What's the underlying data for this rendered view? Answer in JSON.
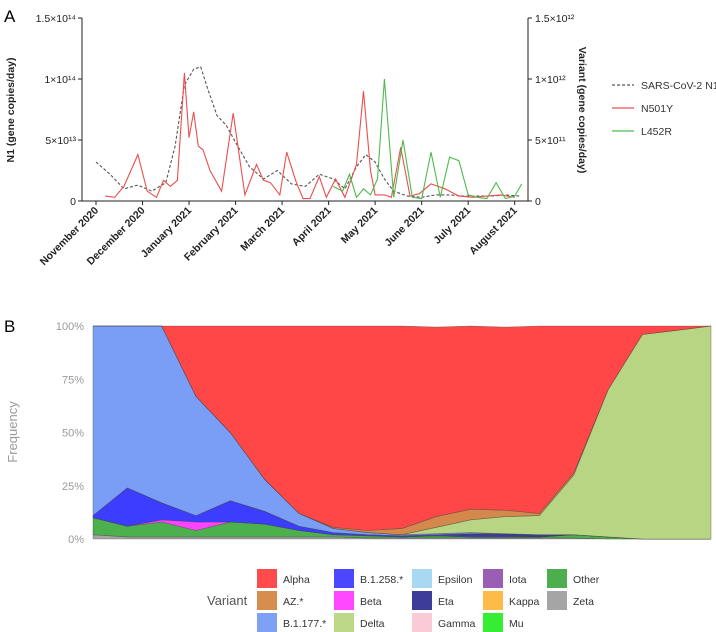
{
  "chart_data": [
    {
      "panel": "A",
      "type": "line",
      "ylabel": "N1 (gene copies/day)",
      "y2label": "Variant (gene copies/day)",
      "yticks": [
        "0",
        "5×10¹³",
        "1×10¹⁴",
        "1.5×10¹⁴"
      ],
      "y2ticks": [
        "0",
        "5×10¹¹",
        "1×10¹²",
        "1.5×10¹²"
      ],
      "ylim": [
        0,
        150
      ],
      "y_unit_note": "values in units of 1e12 (left) / 1e10 (right)",
      "xlim": [
        0,
        9.2
      ],
      "xtick_labels": [
        "November 2020",
        "December 2020",
        "January 2021",
        "February 2021",
        "March 2021",
        "April 2021",
        "May 2021",
        "June 2021",
        "July 2021",
        "August 2021"
      ],
      "xtick_pos": [
        0,
        1,
        2,
        3,
        4,
        5,
        6,
        7,
        8,
        9
      ],
      "legend": [
        "SARS-CoV-2 N1",
        "N501Y",
        "L452R"
      ],
      "series": [
        {
          "name": "SARS-CoV-2 N1",
          "color": "#555555",
          "style": "dashed",
          "x": [
            0,
            0.3,
            0.6,
            0.9,
            1.2,
            1.5,
            1.7,
            1.9,
            2.1,
            2.25,
            2.4,
            2.6,
            2.8,
            3.0,
            3.3,
            3.6,
            3.9,
            4.2,
            4.5,
            4.8,
            5.1,
            5.35,
            5.6,
            5.8,
            6.0,
            6.2,
            6.4,
            6.7,
            7.0,
            7.3,
            7.6,
            7.9,
            8.2,
            8.5,
            8.8,
            9.1
          ],
          "y": [
            32,
            22,
            10,
            13,
            8,
            15,
            45,
            95,
            108,
            110,
            92,
            70,
            62,
            48,
            28,
            18,
            25,
            14,
            12,
            22,
            18,
            10,
            28,
            38,
            32,
            18,
            8,
            4,
            3,
            5,
            5,
            4,
            4,
            4,
            5,
            4
          ]
        },
        {
          "name": "N501Y",
          "color": "#ee4d4d",
          "style": "solid",
          "x": [
            0.2,
            0.4,
            0.6,
            0.9,
            1.1,
            1.3,
            1.45,
            1.6,
            1.75,
            1.9,
            2.0,
            2.1,
            2.2,
            2.3,
            2.45,
            2.7,
            2.95,
            3.2,
            3.45,
            3.6,
            3.75,
            3.95,
            4.1,
            4.3,
            4.45,
            4.6,
            4.8,
            4.95,
            5.15,
            5.35,
            5.6,
            5.75,
            5.9,
            6.0,
            6.2,
            6.35,
            6.55,
            6.75,
            6.95,
            7.2,
            7.5,
            7.8,
            8.1,
            8.4,
            8.7,
            9.0
          ],
          "y": [
            4,
            3,
            12,
            38,
            8,
            3,
            17,
            12,
            17,
            105,
            52,
            73,
            45,
            42,
            25,
            8,
            72,
            5,
            30,
            17,
            15,
            5,
            40,
            16,
            2,
            2,
            20,
            3,
            18,
            3,
            30,
            90,
            25,
            5,
            5,
            3,
            44,
            4,
            6,
            14,
            10,
            4,
            3,
            4,
            5,
            3
          ]
        },
        {
          "name": "L452R",
          "color": "#4cba4c",
          "style": "solid",
          "x": [
            5.1,
            5.3,
            5.45,
            5.6,
            5.75,
            5.9,
            6.05,
            6.2,
            6.4,
            6.6,
            6.8,
            7.0,
            7.2,
            7.4,
            7.6,
            7.8,
            8.0,
            8.2,
            8.4,
            8.6,
            8.8,
            9.0,
            9.15
          ],
          "y": [
            12,
            8,
            22,
            3,
            10,
            5,
            18,
            100,
            3,
            50,
            3,
            2,
            40,
            3,
            36,
            33,
            5,
            3,
            2,
            15,
            2,
            4,
            14
          ]
        }
      ]
    },
    {
      "panel": "B",
      "type": "area",
      "ylabel": "Frequency",
      "yticks": [
        "0%",
        "25%",
        "50%",
        "75%",
        "100%"
      ],
      "ylim": [
        0,
        100
      ],
      "x": [
        0,
        1,
        2,
        3,
        4,
        5,
        6,
        7,
        8,
        9,
        10,
        11,
        12,
        13,
        14,
        15,
        16,
        17,
        18
      ],
      "series": [
        {
          "name": "Zeta",
          "color": "#a6a6a6",
          "values": [
            2,
            1,
            1,
            1,
            1,
            1,
            1,
            1,
            0.5,
            0.5,
            0.5,
            0.5,
            0.5,
            0.5,
            0.5,
            0,
            0,
            0,
            0
          ]
        },
        {
          "name": "Other",
          "color": "#4cb04c",
          "values": [
            8,
            5,
            7,
            3,
            7,
            6,
            3,
            1,
            1,
            0.5,
            1,
            0.5,
            0.5,
            0.5,
            1.5,
            1,
            0,
            0,
            0
          ]
        },
        {
          "name": "Beta",
          "color": "#ff44ff",
          "values": [
            0,
            0,
            1,
            4,
            0,
            0,
            0,
            0,
            0,
            0,
            0,
            0,
            0,
            0,
            0,
            0,
            0,
            0,
            0
          ]
        },
        {
          "name": "B.1.258.*",
          "color": "#3d3dff",
          "values": [
            1,
            18,
            8,
            3,
            10,
            6,
            2,
            1,
            0.5,
            0.5,
            0.5,
            0.5,
            0.5,
            0,
            0,
            0,
            0,
            0,
            0
          ]
        },
        {
          "name": "Eta",
          "color": "#3a3a9c",
          "values": [
            0,
            0,
            0,
            0,
            0,
            0,
            0,
            0,
            0,
            0,
            0,
            1,
            1,
            1,
            0,
            0,
            0,
            0,
            0
          ]
        },
        {
          "name": "B.1.177.*",
          "color": "#7a9ef5",
          "values": [
            89,
            76,
            83,
            56,
            32,
            15,
            6,
            2,
            1,
            0.5,
            0.5,
            0.5,
            0,
            0,
            0,
            0,
            0,
            0,
            0
          ]
        },
        {
          "name": "Delta",
          "color": "#b7d582",
          "values": [
            0,
            0,
            0,
            0,
            0,
            0,
            0,
            0,
            0,
            0,
            3,
            6,
            8,
            9,
            28,
            69,
            96,
            98,
            100
          ]
        },
        {
          "name": "AZ.*",
          "color": "#d4884b",
          "values": [
            0,
            0,
            0,
            0,
            0,
            0,
            0,
            0.5,
            1,
            3,
            5,
            5,
            3,
            1,
            1,
            0,
            0,
            0,
            0
          ]
        },
        {
          "name": "Alpha",
          "color": "#ff4747",
          "values": [
            0,
            0,
            0,
            33,
            50,
            72,
            88,
            94.5,
            96.5,
            95,
            89,
            86,
            86,
            88,
            69,
            30,
            4,
            2,
            0
          ]
        }
      ],
      "legend_title": "Variant",
      "legend": [
        {
          "name": "Alpha",
          "color": "#ff4b4b"
        },
        {
          "name": "AZ.*",
          "color": "#d68d4d"
        },
        {
          "name": "B.1.177.*",
          "color": "#7ea0f5"
        },
        {
          "name": "B.1.258.*",
          "color": "#4a47ff"
        },
        {
          "name": "Beta",
          "color": "#ff48ff"
        },
        {
          "name": "Delta",
          "color": "#bcd888"
        },
        {
          "name": "Epsilon",
          "color": "#a8d8f2"
        },
        {
          "name": "Eta",
          "color": "#3d3d99"
        },
        {
          "name": "Gamma",
          "color": "#f9cbd6"
        },
        {
          "name": "Iota",
          "color": "#9a5fb4"
        },
        {
          "name": "Kappa",
          "color": "#ffbb48"
        },
        {
          "name": "Mu",
          "color": "#33ee33"
        },
        {
          "name": "Other",
          "color": "#4cae4c"
        },
        {
          "name": "Zeta",
          "color": "#a5a5a5"
        }
      ]
    }
  ]
}
